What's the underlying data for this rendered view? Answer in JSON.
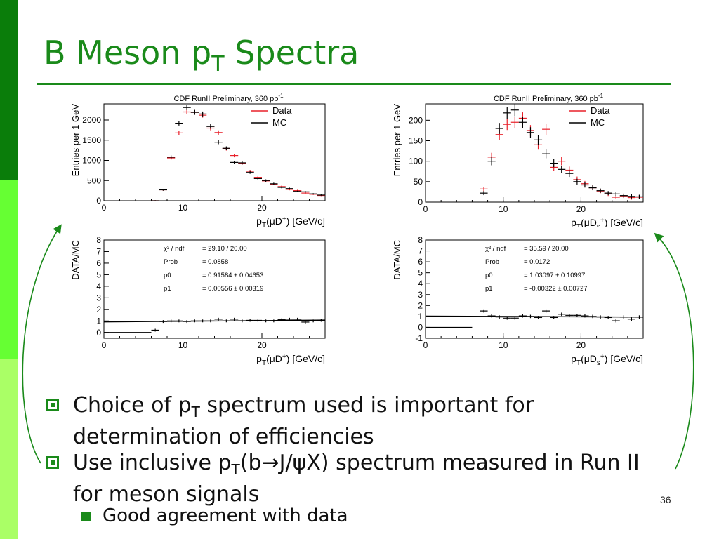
{
  "colors": {
    "accent": "#1a8a1a",
    "data": "#e8202a",
    "mc": "#000000"
  },
  "title": {
    "main": "B Meson p",
    "sub": "T",
    "rest": " Spectra"
  },
  "bullets": [
    {
      "pre": "Choice of p",
      "sub": "T",
      "post": " spectrum used is important for determination of efficiencies"
    },
    {
      "pre": "Use inclusive p",
      "sub": "T",
      "post": "(b→J/ψX) spectrum measured in Run II for meson signals"
    }
  ],
  "sub_bullet": "Good agreement with data",
  "page_number": "36",
  "chart_data": [
    {
      "type": "scatter",
      "title": "CDF RunII Preliminary, 360 pb",
      "title_sup": "-1",
      "xlabel": "pT(μD+) [GeV/c]",
      "ylabel": "Entries per 1 GeV",
      "xlim": [
        0,
        28
      ],
      "ylim": [
        0,
        2400
      ],
      "xticks": [
        0,
        10,
        20
      ],
      "yticks": [
        0,
        500,
        1000,
        1500,
        2000
      ],
      "legend_position": "top-right",
      "series": [
        {
          "name": "Data",
          "x": [
            6.5,
            7.5,
            8.5,
            9.5,
            10.5,
            11.5,
            12.5,
            13.5,
            14.5,
            15.5,
            16.5,
            17.5,
            18.5,
            19.5,
            20.5,
            21.5,
            22.5,
            23.5,
            24.5,
            25.5,
            26.5,
            27.5
          ],
          "y": [
            0,
            270,
            1060,
            1680,
            2200,
            2190,
            2120,
            1800,
            1690,
            1290,
            1120,
            930,
            730,
            580,
            490,
            410,
            350,
            280,
            250,
            190,
            160,
            130
          ]
        },
        {
          "name": "MC",
          "x": [
            6.5,
            7.5,
            8.5,
            9.5,
            10.5,
            11.5,
            12.5,
            13.5,
            14.5,
            15.5,
            16.5,
            17.5,
            18.5,
            19.5,
            20.5,
            21.5,
            22.5,
            23.5,
            24.5,
            25.5,
            26.5,
            27.5
          ],
          "y": [
            0,
            270,
            1080,
            1920,
            2310,
            2190,
            2150,
            1840,
            1450,
            1300,
            950,
            940,
            700,
            550,
            500,
            420,
            330,
            300,
            230,
            220,
            170,
            140
          ]
        }
      ]
    },
    {
      "type": "scatter",
      "title": "CDF RunII Preliminary, 360 pb",
      "title_sup": "-1",
      "xlabel": "pT(μDs+) [GeV/c]",
      "ylabel": "Entries per 1 GeV",
      "xlim": [
        0,
        28
      ],
      "ylim": [
        0,
        240
      ],
      "xticks": [
        0,
        10,
        20
      ],
      "yticks": [
        0,
        50,
        100,
        150,
        200
      ],
      "legend_position": "top-right",
      "series": [
        {
          "name": "Data",
          "x": [
            7.5,
            8.5,
            9.5,
            10.5,
            11.5,
            12.5,
            13.5,
            14.5,
            15.5,
            16.5,
            17.5,
            18.5,
            19.5,
            20.5,
            21.5,
            22.5,
            23.5,
            24.5,
            25.5,
            26.5,
            27.5
          ],
          "y": [
            32,
            110,
            165,
            190,
            195,
            205,
            175,
            140,
            178,
            85,
            100,
            78,
            55,
            45,
            35,
            27,
            20,
            12,
            15,
            11,
            12
          ]
        },
        {
          "name": "MC",
          "x": [
            7.5,
            8.5,
            9.5,
            10.5,
            11.5,
            12.5,
            13.5,
            14.5,
            15.5,
            16.5,
            17.5,
            18.5,
            19.5,
            20.5,
            21.5,
            22.5,
            23.5,
            24.5,
            25.5,
            26.5,
            27.5
          ],
          "y": [
            22,
            100,
            180,
            218,
            225,
            195,
            170,
            152,
            118,
            95,
            80,
            70,
            50,
            42,
            35,
            28,
            22,
            20,
            16,
            14,
            13
          ]
        }
      ]
    },
    {
      "type": "scatter",
      "xlabel": "pT(μD+) [GeV/c]",
      "ylabel": "DATA/MC",
      "xlim": [
        0,
        28
      ],
      "ylim": [
        -0.5,
        8
      ],
      "xticks": [
        0,
        10,
        20
      ],
      "yticks": [
        0,
        1,
        2,
        3,
        4,
        5,
        6,
        7,
        8
      ],
      "fit": {
        "p0": 0.91584,
        "p1": 0.00556
      },
      "stats": [
        [
          "χ² / ndf",
          "= 29.10 / 20.00"
        ],
        [
          "Prob",
          "= 0.0858"
        ],
        [
          "p0",
          "= 0.91584 ± 0.04653"
        ],
        [
          "p1",
          "= 0.00556 ± 0.00319"
        ]
      ],
      "series": [
        {
          "name": "",
          "x": [
            6.5,
            7.5,
            8.5,
            9.5,
            10.5,
            11.5,
            12.5,
            13.5,
            14.5,
            15.5,
            16.5,
            17.5,
            18.5,
            19.5,
            20.5,
            21.5,
            22.5,
            23.5,
            24.5,
            25.5,
            26.5,
            27.5
          ],
          "y": [
            0.2,
            0.95,
            1.0,
            1.0,
            0.95,
            1.0,
            1.0,
            1.0,
            1.15,
            1.0,
            1.15,
            1.0,
            1.05,
            1.05,
            1.0,
            1.0,
            1.1,
            1.15,
            1.15,
            0.9,
            1.0,
            1.05
          ]
        }
      ]
    },
    {
      "type": "scatter",
      "xlabel": "pT(μDs+) [GeV/c]",
      "ylabel": "DATA/MC",
      "xlim": [
        0,
        28
      ],
      "ylim": [
        -1,
        8
      ],
      "xticks": [
        0,
        10,
        20
      ],
      "yticks": [
        -1,
        0,
        1,
        2,
        3,
        4,
        5,
        6,
        7,
        8
      ],
      "fit": {
        "p0": 1.03097,
        "p1": -0.00322
      },
      "stats": [
        [
          "χ² / ndf",
          "= 35.59 / 20.00"
        ],
        [
          "Prob",
          "= 0.0172"
        ],
        [
          "p0",
          "= 1.03097 ± 0.10997"
        ],
        [
          "p1",
          "= -0.00322 ± 0.00727"
        ]
      ],
      "series": [
        {
          "name": "",
          "x": [
            7.5,
            8.5,
            9.5,
            10.5,
            11.5,
            12.5,
            13.5,
            14.5,
            15.5,
            16.5,
            17.5,
            18.5,
            19.5,
            20.5,
            21.5,
            22.5,
            23.5,
            24.5,
            25.5,
            26.5,
            27.5
          ],
          "y": [
            1.5,
            1.05,
            0.95,
            0.85,
            0.85,
            1.05,
            1.0,
            0.9,
            1.5,
            0.9,
            1.2,
            1.1,
            1.1,
            1.05,
            1.0,
            0.95,
            0.9,
            0.6,
            0.95,
            0.75,
            0.95
          ]
        }
      ]
    }
  ]
}
